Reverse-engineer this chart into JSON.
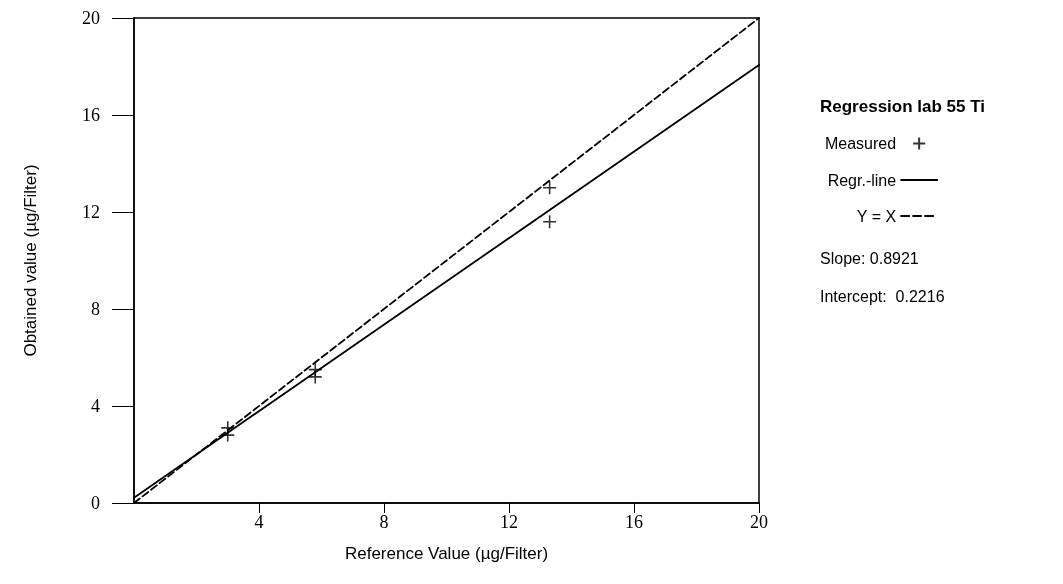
{
  "chart_data": {
    "type": "scatter",
    "xlabel": "Reference Value (µg/Filter)",
    "ylabel": "Obtained value (µg/Filter)",
    "legend_title": "Regression lab 55 Ti",
    "annotations": [
      "Slope: 0.8921",
      "Intercept:  0.2216"
    ],
    "xlim": [
      0,
      20
    ],
    "xticks": [
      4,
      8,
      12,
      16,
      20
    ],
    "ylim": [
      0,
      20
    ],
    "yticks": [
      0,
      4,
      8,
      12,
      16,
      20
    ],
    "grid": false,
    "legend": "right",
    "series": [
      {
        "name": "Measured",
        "marker": "cross",
        "color": "#000000",
        "x": [
          3.0,
          3.0,
          5.8,
          5.8,
          13.3,
          13.3
        ],
        "values": [
          3.1,
          2.8,
          5.5,
          5.2,
          13.0,
          11.6
        ]
      },
      {
        "name": "Regr.-line",
        "type": "line",
        "marker": "none",
        "line_style": "solid",
        "color": "#000000",
        "x": [
          0,
          20
        ],
        "values": [
          0.22,
          18.06
        ]
      },
      {
        "name": "Y = X",
        "type": "line",
        "marker": "none",
        "line_style": "dashed",
        "color": "#000000",
        "x": [
          0,
          20
        ],
        "values": [
          0,
          20
        ]
      }
    ]
  }
}
